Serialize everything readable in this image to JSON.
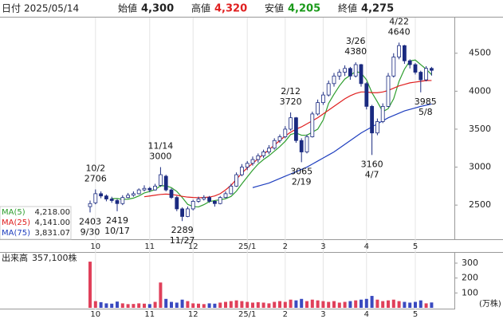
{
  "header": {
    "date_label": "日付",
    "date": "2025/05/14",
    "open_label": "始値",
    "open": "4,300",
    "high_label": "高値",
    "high": "4,320",
    "low_label": "安値",
    "low": "4,205",
    "close_label": "終値",
    "close": "4,275"
  },
  "chart_data": [
    {
      "type": "candlestick",
      "categories": [
        null,
        "10",
        null,
        null,
        null,
        null,
        null,
        null,
        null,
        null,
        null,
        "11",
        null,
        null,
        null,
        null,
        null,
        null,
        null,
        "12",
        null,
        null,
        null,
        null,
        null,
        null,
        null,
        null,
        null,
        "25/1",
        null,
        null,
        null,
        null,
        null,
        null,
        "2",
        null,
        null,
        null,
        null,
        null,
        null,
        "3",
        null,
        null,
        null,
        null,
        null,
        null,
        null,
        "4",
        null,
        null,
        null,
        null,
        null,
        null,
        null,
        null,
        "5",
        null,
        null,
        null
      ],
      "open": [
        2480,
        2530,
        2650,
        2620,
        2580,
        2560,
        2520,
        2600,
        2630,
        2650,
        2700,
        2720,
        2700,
        2760,
        2880,
        2700,
        2600,
        2450,
        2350,
        2450,
        2550,
        2580,
        2600,
        2550,
        2520,
        2600,
        2650,
        2750,
        2900,
        3000,
        3050,
        3100,
        3150,
        3200,
        3250,
        3350,
        3400,
        3500,
        3650,
        3350,
        3200,
        3400,
        3700,
        3850,
        3950,
        4100,
        4200,
        4250,
        4300,
        4200,
        4350,
        4100,
        3800,
        3450,
        3600,
        3800,
        4200,
        4450,
        4600,
        4400,
        4350,
        4250,
        4150,
        4300
      ],
      "high": [
        2560,
        2706,
        2680,
        2640,
        2610,
        2580,
        2630,
        2660,
        2680,
        2720,
        2760,
        2740,
        2780,
        3000,
        2900,
        2720,
        2620,
        2470,
        2480,
        2570,
        2610,
        2630,
        2620,
        2560,
        2620,
        2680,
        2780,
        2930,
        3040,
        3080,
        3140,
        3180,
        3230,
        3290,
        3380,
        3430,
        3540,
        3720,
        3660,
        3380,
        3430,
        3730,
        3890,
        3990,
        4140,
        4240,
        4290,
        4340,
        4320,
        4380,
        4360,
        4120,
        3820,
        3640,
        3840,
        4240,
        4500,
        4640,
        4610,
        4420,
        4370,
        4270,
        4330,
        4320
      ],
      "low": [
        2403,
        2510,
        2590,
        2550,
        2530,
        2419,
        2500,
        2590,
        2610,
        2640,
        2680,
        2670,
        2690,
        2740,
        2680,
        2580,
        2420,
        2289,
        2340,
        2430,
        2530,
        2560,
        2530,
        2480,
        2510,
        2590,
        2640,
        2740,
        2880,
        2960,
        3020,
        3060,
        3120,
        3170,
        3230,
        3320,
        3380,
        3480,
        3320,
        3065,
        3180,
        3390,
        3680,
        3820,
        3930,
        4060,
        4150,
        4200,
        4150,
        4180,
        4060,
        3760,
        3160,
        3420,
        3580,
        3790,
        4180,
        4420,
        4360,
        4300,
        4220,
        3985,
        4130,
        4205
      ],
      "close": [
        2520,
        2650,
        2620,
        2580,
        2560,
        2520,
        2600,
        2630,
        2650,
        2700,
        2720,
        2700,
        2750,
        2900,
        2700,
        2600,
        2450,
        2350,
        2450,
        2550,
        2580,
        2600,
        2550,
        2520,
        2600,
        2650,
        2750,
        2900,
        3000,
        3050,
        3100,
        3150,
        3200,
        3250,
        3350,
        3400,
        3500,
        3650,
        3350,
        3200,
        3400,
        3700,
        3850,
        3950,
        4100,
        4200,
        4250,
        4300,
        4200,
        4350,
        4100,
        3800,
        3450,
        3600,
        3800,
        4200,
        4450,
        4600,
        4400,
        4350,
        4250,
        4150,
        4300,
        4275
      ],
      "up_color": "#ffffff",
      "down_color": "#1a2a80",
      "wick_color": "#1a2a80",
      "ma": [
        {
          "name": "MA(5)",
          "last": "4,218.00",
          "color": "#2e9e2e",
          "values": [
            null,
            null,
            null,
            null,
            2586,
            2586,
            2576,
            2578,
            2592,
            2620,
            2660,
            2680,
            2704,
            2754,
            2754,
            2730,
            2680,
            2600,
            2510,
            2480,
            2476,
            2506,
            2546,
            2560,
            2570,
            2584,
            2614,
            2684,
            2780,
            2870,
            2960,
            3040,
            3100,
            3150,
            3210,
            3270,
            3340,
            3430,
            3450,
            3420,
            3420,
            3460,
            3500,
            3620,
            3840,
            3960,
            4070,
            4160,
            4210,
            4260,
            4240,
            4150,
            3980,
            3860,
            3730,
            3770,
            3900,
            4130,
            4290,
            4400,
            4410,
            4350,
            4290,
            4218
          ]
        },
        {
          "name": "MA(25)",
          "last": "4,141.00",
          "color": "#e02020",
          "values": [
            null,
            null,
            null,
            null,
            null,
            null,
            null,
            null,
            null,
            null,
            2610,
            2620,
            2630,
            2640,
            2645,
            2640,
            2630,
            2615,
            2605,
            2600,
            2598,
            2600,
            2605,
            2620,
            2650,
            2700,
            2760,
            2840,
            2920,
            2990,
            3050,
            3110,
            3170,
            3230,
            3290,
            3350,
            3410,
            3460,
            3500,
            3530,
            3570,
            3610,
            3650,
            3700,
            3750,
            3800,
            3850,
            3900,
            3940,
            3970,
            3990,
            3990,
            3980,
            3980,
            3990,
            4010,
            4040,
            4070,
            4090,
            4110,
            4120,
            4130,
            4140,
            4141
          ]
        },
        {
          "name": "MA(75)",
          "last": "3,831.07",
          "color": "#1f3fbf",
          "values": [
            null,
            null,
            null,
            null,
            null,
            null,
            null,
            null,
            null,
            null,
            null,
            null,
            null,
            null,
            null,
            null,
            null,
            null,
            null,
            null,
            null,
            null,
            null,
            null,
            null,
            null,
            null,
            null,
            null,
            null,
            2730,
            2750,
            2770,
            2790,
            2820,
            2850,
            2880,
            2910,
            2940,
            2970,
            3000,
            3040,
            3080,
            3120,
            3160,
            3200,
            3250,
            3300,
            3350,
            3400,
            3450,
            3490,
            3530,
            3570,
            3610,
            3650,
            3680,
            3710,
            3740,
            3760,
            3780,
            3800,
            3815,
            3831
          ]
        }
      ],
      "annotations": [
        {
          "date": "10/2",
          "price": 2706
        },
        {
          "date": "9/30",
          "price": 2403
        },
        {
          "date": "10/17",
          "price": 2419
        },
        {
          "date": "11/14",
          "price": 3000
        },
        {
          "date": "11/27",
          "price": 2289
        },
        {
          "date": "2/12",
          "price": 3720
        },
        {
          "date": "2/19",
          "price": 3065
        },
        {
          "date": "3/26",
          "price": 4380
        },
        {
          "date": "4/22",
          "price": 4640
        },
        {
          "date": "4/7",
          "price": 3160
        },
        {
          "date": "5/8",
          "price": 3985
        }
      ],
      "ylim": [
        2050,
        4970
      ],
      "yticks": [
        2500,
        3000,
        3500,
        4000,
        4500
      ]
    },
    {
      "type": "volume",
      "title": "出来高",
      "last": "357,100株",
      "unit": "(万株)",
      "values": [
        310,
        45,
        38,
        30,
        28,
        42,
        30,
        25,
        26,
        30,
        28,
        25,
        40,
        170,
        60,
        40,
        35,
        55,
        45,
        30,
        28,
        25,
        30,
        28,
        35,
        40,
        45,
        50,
        45,
        40,
        35,
        38,
        35,
        30,
        40,
        45,
        40,
        55,
        50,
        60,
        45,
        55,
        50,
        45,
        40,
        45,
        35,
        40,
        45,
        50,
        55,
        60,
        80,
        55,
        45,
        50,
        55,
        45,
        40,
        35,
        40,
        50,
        30,
        36
      ],
      "up_color": "#e0405a",
      "down_color": "#3a4ac0",
      "ylim": [
        0,
        364
      ],
      "yticks": [
        100,
        200,
        300
      ]
    }
  ]
}
